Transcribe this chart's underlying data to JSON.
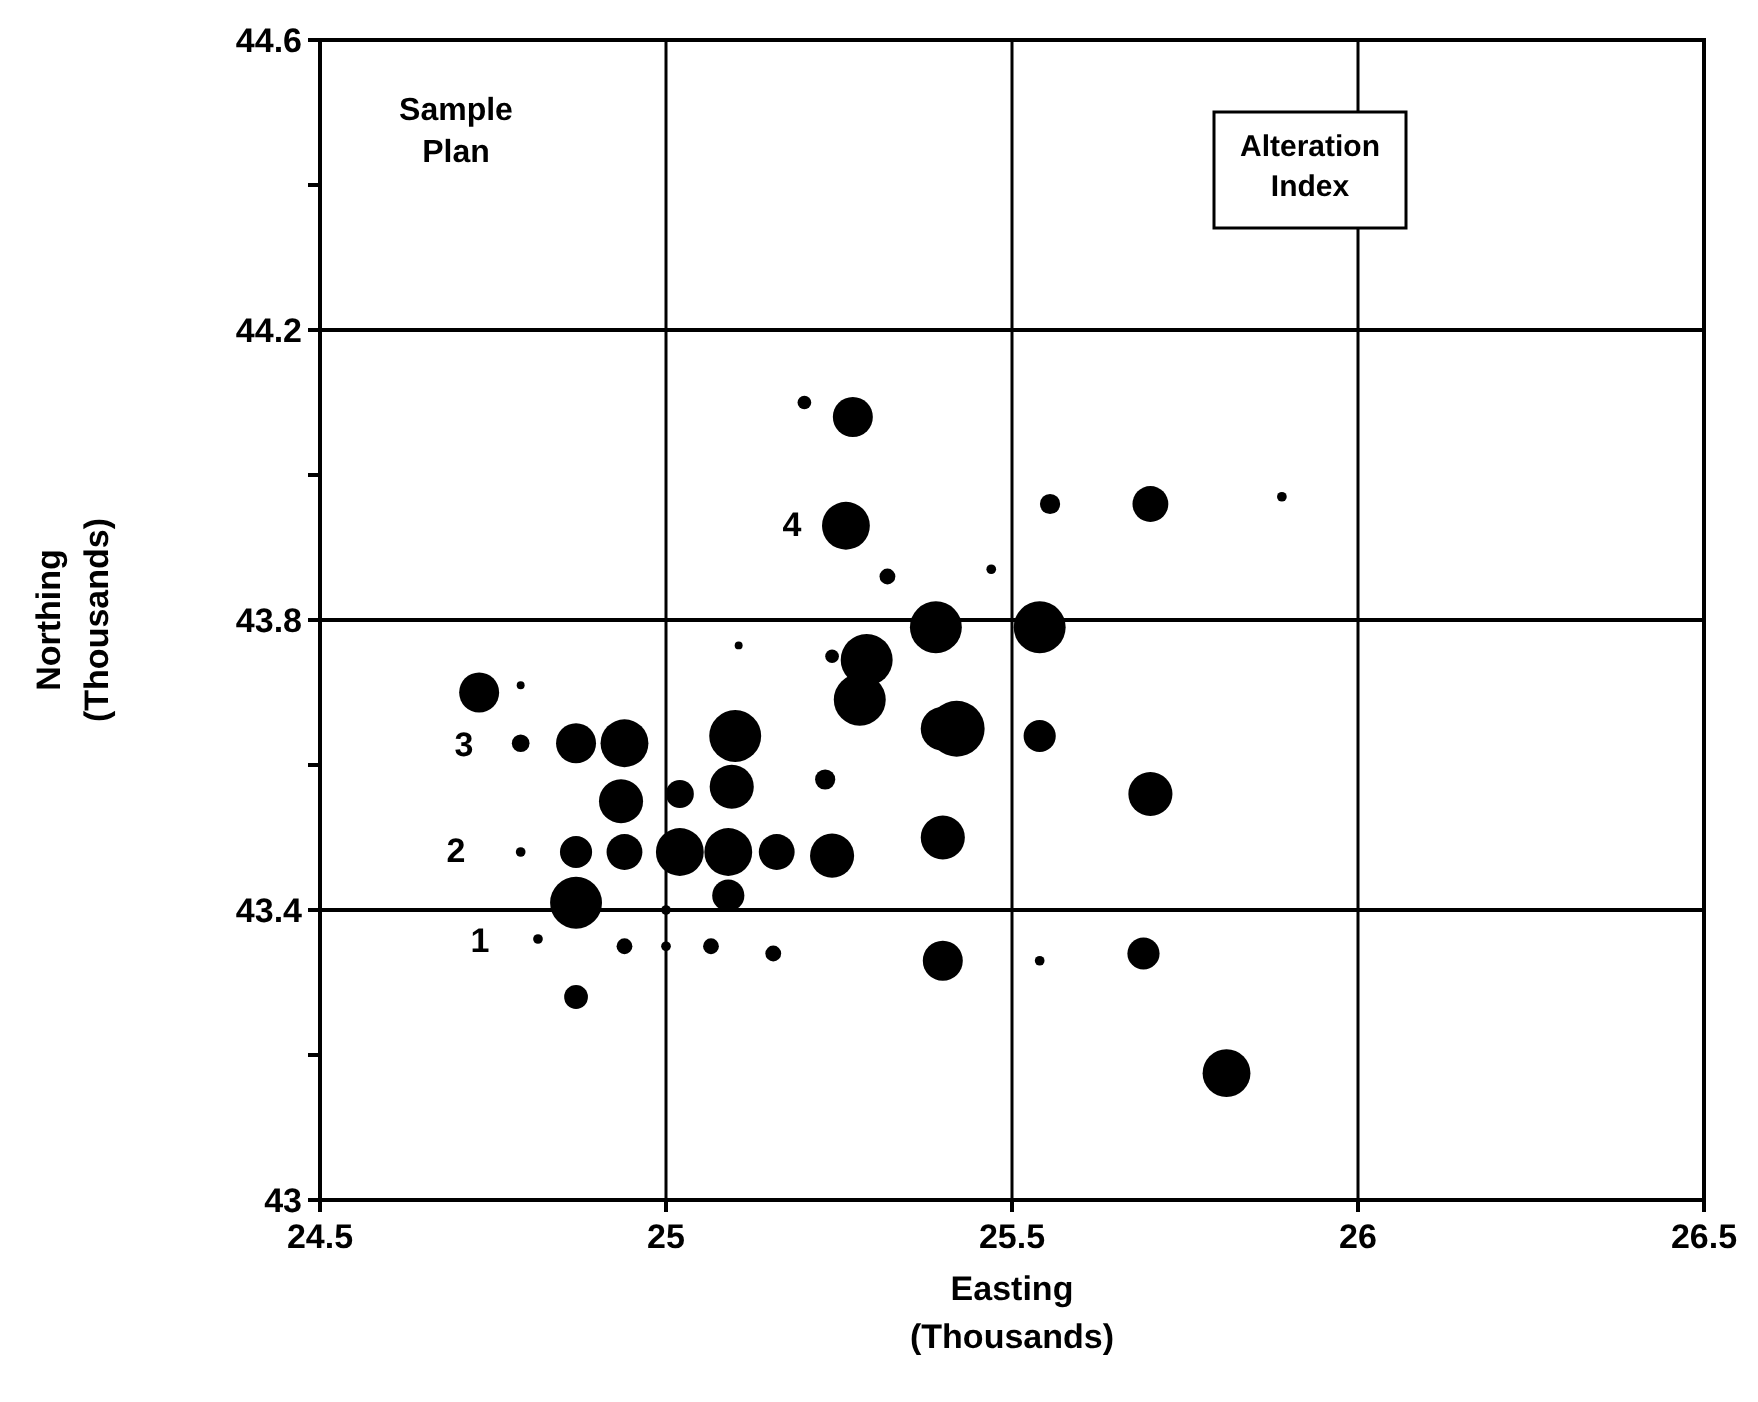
{
  "chart_data": {
    "type": "bubble",
    "title": "Sample Plan",
    "legend_title": "Alteration Index",
    "xlabel": "Easting\n(Thousands)",
    "ylabel": "Northing\n(Thousands)",
    "xlim": [
      24.5,
      26.5
    ],
    "xticks": [
      24.5,
      25,
      25.5,
      26,
      26.5
    ],
    "ylim": [
      43,
      44.6
    ],
    "yticks": [
      43,
      {
        "value": 43.2,
        "label": null
      },
      43.4,
      {
        "value": 43.6,
        "label": null
      },
      43.8,
      {
        "value": 44.0,
        "label": null
      },
      44.2,
      {
        "value": 44.4,
        "label": null
      },
      44.6
    ],
    "grid": true,
    "series": [
      {
        "color": "#000000",
        "x": [
          25.2,
          25.27,
          25.26,
          25.555,
          25.32,
          25.47,
          25.39,
          25.54,
          25.105,
          25.24,
          25.29,
          25.28,
          25.42,
          25.4,
          25.54,
          24.73,
          24.79,
          24.79,
          24.87,
          24.94,
          25.1,
          24.935,
          25.02,
          25.095,
          25.23,
          25.4,
          24.79,
          24.87,
          24.94,
          25.02,
          25.09,
          25.16,
          25.24,
          24.87,
          25.0,
          25.09,
          24.815,
          24.94,
          25.0,
          25.065,
          25.155,
          25.4,
          25.54,
          24.87,
          25.89,
          25.7,
          25.7,
          25.69,
          25.81
        ],
        "values": [
          44.1,
          44.08,
          43.93,
          43.96,
          43.86,
          43.87,
          43.79,
          43.79,
          43.765,
          43.75,
          43.745,
          43.69,
          43.65,
          43.65,
          43.64,
          43.7,
          43.71,
          43.63,
          43.63,
          43.63,
          43.64,
          43.55,
          43.56,
          43.57,
          43.58,
          43.5,
          43.48,
          43.48,
          43.48,
          43.48,
          43.48,
          43.48,
          43.475,
          43.41,
          43.4,
          43.42,
          43.36,
          43.35,
          43.35,
          43.35,
          43.34,
          43.33,
          43.33,
          43.28,
          43.97,
          43.96,
          43.56,
          43.34,
          43.175
        ],
        "sizes": [
          0.06,
          0.51,
          0.73,
          0.13,
          0.08,
          0.03,
          0.86,
          0.86,
          0.02,
          0.06,
          0.86,
          0.86,
          1,
          0.62,
          0.33,
          0.51,
          0.02,
          0.1,
          0.51,
          0.73,
          0.86,
          0.62,
          0.25,
          0.62,
          0.13,
          0.62,
          0.03,
          0.33,
          0.41,
          0.73,
          0.73,
          0.41,
          0.62,
          0.86,
          0.03,
          0.33,
          0.03,
          0.08,
          0.03,
          0.08,
          0.08,
          0.51,
          0.03,
          0.18,
          0.03,
          0.41,
          0.62,
          0.33,
          0.73
        ]
      }
    ],
    "annotations": [
      "4",
      "3",
      "2",
      "1"
    ]
  }
}
